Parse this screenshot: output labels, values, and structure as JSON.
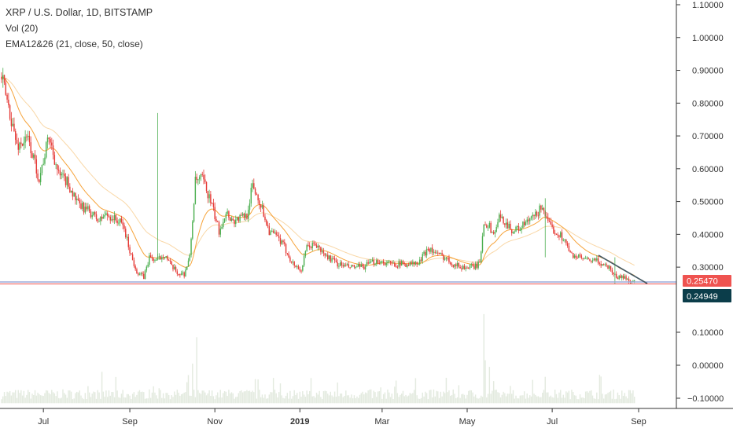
{
  "legend": {
    "title": "XRP / U.S. Dollar, 1D, BITSTAMP",
    "volume": "Vol (20)",
    "ema": "EMA12&26 (21, close, 50, close)"
  },
  "colors": {
    "up": "#4caf50",
    "down": "#e53935",
    "ema_fast": "#f6a33a",
    "ema_slow": "#f9d7a6",
    "volume": "#e3eadf",
    "trendline": "#455a64",
    "support": "#9aa8d8",
    "price_badge": "#ef5350",
    "support_badge": "#0b3d4a",
    "axis_text": "#333333"
  },
  "price_labels": {
    "last": "0.25470",
    "support": "0.24949"
  },
  "chart_data": {
    "type": "line",
    "x_ticks": [
      "Jul",
      "Sep",
      "Nov",
      "2019",
      "Mar",
      "May",
      "Jul",
      "Sep"
    ],
    "price_axis_ticks": [
      "1.10000",
      "1.00000",
      "0.90000",
      "0.80000",
      "0.70000",
      "0.60000",
      "0.50000",
      "0.40000",
      "0.30000"
    ],
    "volume_axis_ticks": [
      "0.10000",
      "0.00000",
      "−0.10000"
    ],
    "series": [
      {
        "values": [
          {
            "x": "2018-06-01",
            "y": 0.88
          },
          {
            "x": "2018-06-07",
            "y": 0.77
          },
          {
            "x": "2018-06-12",
            "y": 0.67
          },
          {
            "x": "2018-06-20",
            "y": 0.69
          },
          {
            "x": "2018-06-28",
            "y": 0.57
          },
          {
            "x": "2018-07-05",
            "y": 0.7
          },
          {
            "x": "2018-07-12",
            "y": 0.58
          },
          {
            "x": "2018-07-18",
            "y": 0.56
          },
          {
            "x": "2018-07-26",
            "y": 0.49
          },
          {
            "x": "2018-08-03",
            "y": 0.47
          },
          {
            "x": "2018-08-10",
            "y": 0.44
          },
          {
            "x": "2018-08-14",
            "y": 0.46
          },
          {
            "x": "2018-08-20",
            "y": 0.45
          },
          {
            "x": "2018-08-27",
            "y": 0.43
          },
          {
            "x": "2018-09-03",
            "y": 0.32
          },
          {
            "x": "2018-09-07",
            "y": 0.28
          },
          {
            "x": "2018-09-11",
            "y": 0.27
          },
          {
            "x": "2018-09-15",
            "y": 0.33
          },
          {
            "x": "2018-09-20",
            "y": 0.32
          },
          {
            "x": "2018-09-26",
            "y": 0.34
          },
          {
            "x": "2018-10-01",
            "y": 0.3
          },
          {
            "x": "2018-10-06",
            "y": 0.28
          },
          {
            "x": "2018-10-10",
            "y": 0.28
          },
          {
            "x": "2018-10-14",
            "y": 0.33
          },
          {
            "x": "2018-10-18",
            "y": 0.56
          },
          {
            "x": "2018-10-23",
            "y": 0.57
          },
          {
            "x": "2018-10-29",
            "y": 0.5
          },
          {
            "x": "2018-11-04",
            "y": 0.41
          },
          {
            "x": "2018-11-09",
            "y": 0.47
          },
          {
            "x": "2018-11-14",
            "y": 0.44
          },
          {
            "x": "2018-11-19",
            "y": 0.45
          },
          {
            "x": "2018-11-24",
            "y": 0.46
          },
          {
            "x": "2018-11-28",
            "y": 0.55
          },
          {
            "x": "2018-12-04",
            "y": 0.49
          },
          {
            "x": "2018-12-10",
            "y": 0.41
          },
          {
            "x": "2018-12-16",
            "y": 0.39
          },
          {
            "x": "2018-12-21",
            "y": 0.36
          },
          {
            "x": "2018-12-27",
            "y": 0.31
          },
          {
            "x": "2019-01-02",
            "y": 0.29
          },
          {
            "x": "2019-01-06",
            "y": 0.36
          },
          {
            "x": "2019-01-12",
            "y": 0.37
          },
          {
            "x": "2019-01-18",
            "y": 0.34
          },
          {
            "x": "2019-01-28",
            "y": 0.31
          },
          {
            "x": "2019-02-05",
            "y": 0.3
          },
          {
            "x": "2019-02-15",
            "y": 0.3
          },
          {
            "x": "2019-02-25",
            "y": 0.32
          },
          {
            "x": "2019-03-07",
            "y": 0.31
          },
          {
            "x": "2019-03-17",
            "y": 0.31
          },
          {
            "x": "2019-03-27",
            "y": 0.31
          },
          {
            "x": "2019-04-03",
            "y": 0.36
          },
          {
            "x": "2019-04-09",
            "y": 0.34
          },
          {
            "x": "2019-04-15",
            "y": 0.33
          },
          {
            "x": "2019-04-21",
            "y": 0.31
          },
          {
            "x": "2019-04-27",
            "y": 0.3
          },
          {
            "x": "2019-05-05",
            "y": 0.3
          },
          {
            "x": "2019-05-10",
            "y": 0.31
          },
          {
            "x": "2019-05-13",
            "y": 0.44
          },
          {
            "x": "2019-05-16",
            "y": 0.43
          },
          {
            "x": "2019-05-20",
            "y": 0.4
          },
          {
            "x": "2019-05-24",
            "y": 0.45
          },
          {
            "x": "2019-05-28",
            "y": 0.44
          },
          {
            "x": "2019-06-03",
            "y": 0.41
          },
          {
            "x": "2019-06-08",
            "y": 0.42
          },
          {
            "x": "2019-06-14",
            "y": 0.44
          },
          {
            "x": "2019-06-20",
            "y": 0.46
          },
          {
            "x": "2019-06-24",
            "y": 0.49
          },
          {
            "x": "2019-06-28",
            "y": 0.43
          },
          {
            "x": "2019-07-03",
            "y": 0.41
          },
          {
            "x": "2019-07-09",
            "y": 0.39
          },
          {
            "x": "2019-07-14",
            "y": 0.34
          },
          {
            "x": "2019-07-20",
            "y": 0.33
          },
          {
            "x": "2019-07-26",
            "y": 0.32
          },
          {
            "x": "2019-08-01",
            "y": 0.32
          },
          {
            "x": "2019-08-06",
            "y": 0.31
          },
          {
            "x": "2019-08-11",
            "y": 0.3
          },
          {
            "x": "2019-08-16",
            "y": 0.27
          },
          {
            "x": "2019-08-21",
            "y": 0.27
          },
          {
            "x": "2019-08-26",
            "y": 0.26
          },
          {
            "x": "2019-08-29",
            "y": 0.255
          }
        ]
      }
    ],
    "price_ylim": [
      0.25,
      1.1
    ],
    "volume_ylim": [
      -0.1,
      0.1
    ],
    "grid": false,
    "title": "XRP / U.S. Dollar, 1D, BITSTAMP"
  }
}
